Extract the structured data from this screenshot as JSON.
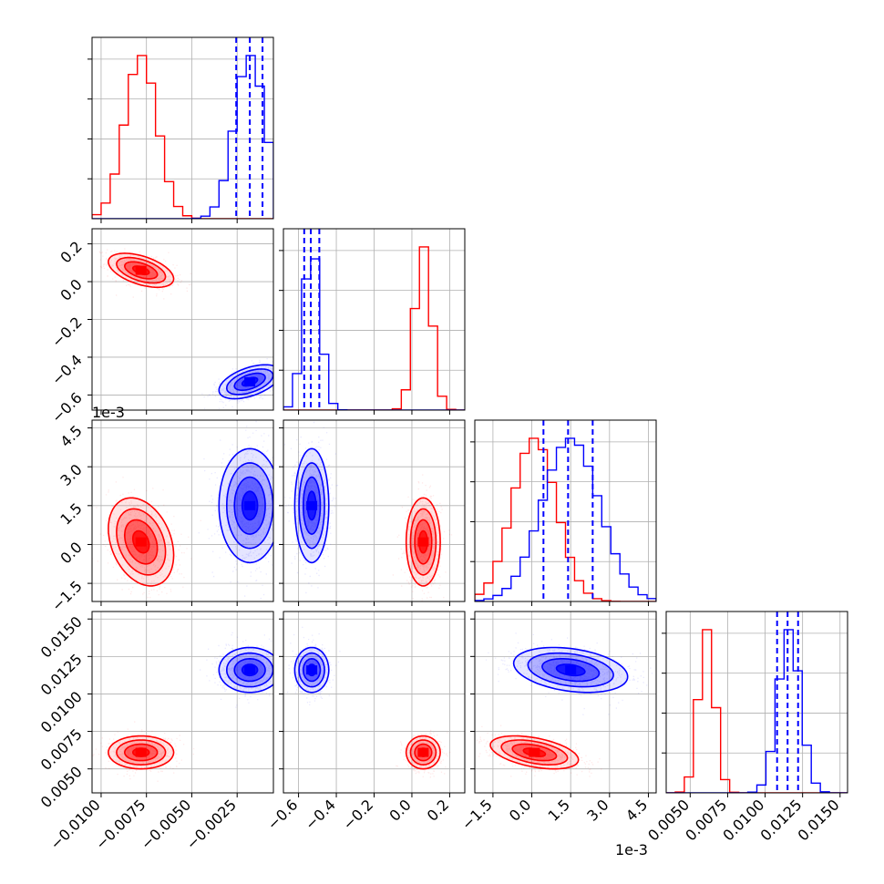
{
  "figure": {
    "colors": {
      "red": "#ff0000",
      "blue": "#0000ff",
      "grid": "#b0b0b0",
      "frame": "#000000"
    },
    "offset_labels": {
      "p2_y": "1e-3",
      "p2_x": "1e-3"
    }
  },
  "chart_data": {
    "type": "corner",
    "parameters": [
      {
        "id": "p0",
        "range": [
          -0.0105,
          -0.0005
        ],
        "ticks": [
          -0.01,
          -0.0075,
          -0.005,
          -0.0025
        ],
        "tick_labels": [
          "−0.0100",
          "−0.0075",
          "−0.0050",
          "−0.0025"
        ]
      },
      {
        "id": "p1",
        "range": [
          -0.68,
          0.28
        ],
        "ticks": [
          -0.6,
          -0.4,
          -0.2,
          0.0,
          0.2
        ],
        "tick_labels": [
          "−0.6",
          "−0.4",
          "−0.2",
          "0.0",
          "0.2"
        ]
      },
      {
        "id": "p2",
        "range": [
          -0.0022,
          0.0048
        ],
        "ticks": [
          -0.0015,
          0.0,
          0.0015,
          0.003,
          0.0045
        ],
        "tick_labels": [
          "−1.5",
          "0.0",
          "1.5",
          "3.0",
          "4.5"
        ],
        "offset": "1e-3"
      },
      {
        "id": "p3",
        "range": [
          0.0034,
          0.0155
        ],
        "ticks": [
          0.005,
          0.0075,
          0.01,
          0.0125,
          0.015
        ],
        "tick_labels": [
          "0.0050",
          "0.0075",
          "0.0100",
          "0.0125",
          "0.0150"
        ]
      }
    ],
    "series": [
      {
        "color": "#ff0000",
        "mean": [
          -0.0078,
          0.06,
          0.0001,
          0.0061
        ],
        "sd": [
          0.0009,
          0.045,
          0.00085,
          0.00055
        ],
        "corr": [
          [
            1,
            -0.5,
            -0.3,
            0
          ],
          [
            -0.5,
            1,
            0,
            0
          ],
          [
            -0.3,
            0,
            1,
            -0.45
          ],
          [
            0,
            0,
            -0.45,
            1
          ]
        ]
      },
      {
        "color": "#0000ff",
        "mean": [
          -0.0018,
          -0.53,
          0.0015,
          0.0116
        ],
        "sd": [
          0.00085,
          0.045,
          0.0011,
          0.00075
        ],
        "corr": [
          [
            1,
            0.5,
            0,
            0
          ],
          [
            0.5,
            1,
            0,
            0
          ],
          [
            0,
            0,
            1,
            -0.3
          ],
          [
            0,
            0,
            -0.3,
            1
          ]
        ]
      }
    ],
    "marginals": [
      {
        "param": 0,
        "quantile_lines": [
          -0.00255,
          -0.0018,
          -0.0011
        ]
      },
      {
        "param": 1,
        "quantile_lines": [
          -0.57,
          -0.535,
          -0.49
        ]
      },
      {
        "param": 2,
        "quantile_lines": [
          0.00045,
          0.0014,
          0.00235
        ]
      },
      {
        "param": 3,
        "quantile_lines": [
          0.0108,
          0.0115,
          0.0122
        ]
      }
    ],
    "grid": true
  }
}
